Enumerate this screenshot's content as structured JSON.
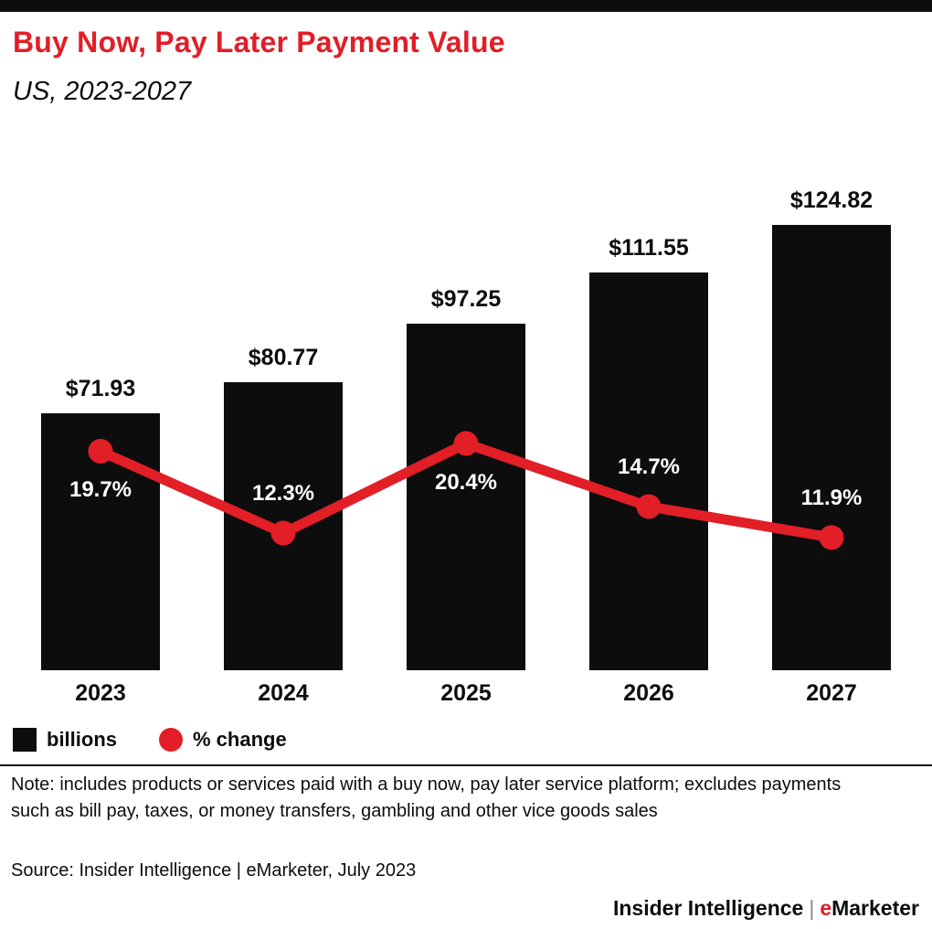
{
  "page": {
    "title": "Buy Now, Pay Later Payment Value",
    "subtitle": "US, 2023-2027"
  },
  "chart_data": {
    "type": "bar",
    "title": "Buy Now, Pay Later Payment Value",
    "subtitle": "US, 2023-2027",
    "categories": [
      "2023",
      "2024",
      "2025",
      "2026",
      "2027"
    ],
    "series": [
      {
        "name": "billions",
        "type": "bar",
        "values": [
          71.93,
          80.77,
          97.25,
          111.55,
          124.82
        ],
        "value_labels": [
          "$71.93",
          "$80.77",
          "$97.25",
          "$111.55",
          "$124.82"
        ]
      },
      {
        "name": "% change",
        "type": "line",
        "values": [
          19.7,
          12.3,
          20.4,
          14.7,
          11.9
        ],
        "value_labels": [
          "19.7%",
          "12.3%",
          "20.4%",
          "14.7%",
          "11.9%"
        ],
        "label_side": [
          "below",
          "above",
          "below",
          "above",
          "above"
        ]
      }
    ],
    "xlabel": "",
    "ylabel": "",
    "grid": false,
    "legend_position": "bottom-left",
    "legend": [
      {
        "label": "billions",
        "swatch": "square",
        "color": "#0d0d0d"
      },
      {
        "label": "% change",
        "swatch": "circle",
        "color": "#e21e26"
      }
    ]
  },
  "notes": {
    "note": "Note: includes products or services paid with a buy now, pay later service platform; excludes payments such as bill pay, taxes, or money transfers, gambling and other vice goods sales",
    "source": "Source: Insider Intelligence | eMarketer, July 2023"
  },
  "footer": {
    "brand_left": "Insider Intelligence",
    "separator": "|",
    "brand_e": "e",
    "brand_rest": "Marketer"
  },
  "colors": {
    "accent_red": "#e21e26",
    "bar_black": "#0d0d0d"
  }
}
